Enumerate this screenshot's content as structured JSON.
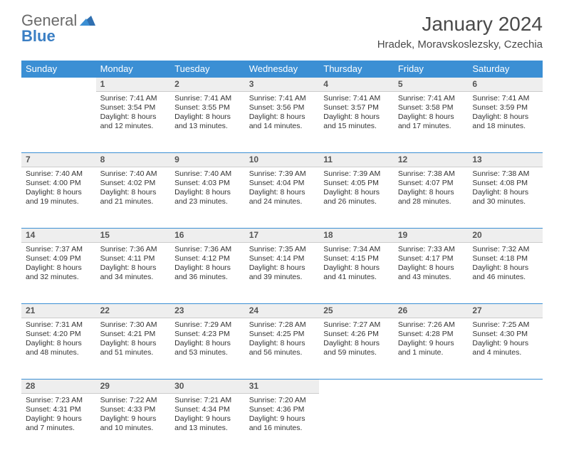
{
  "brand": {
    "word1": "General",
    "word2": "Blue"
  },
  "title": "January 2024",
  "location": "Hradek, Moravskoslezsky, Czechia",
  "colors": {
    "header_bg": "#3b8fd4",
    "header_text": "#ffffff",
    "row_border": "#3b8fd4",
    "daynum_bg": "#eeeeee",
    "text": "#333333",
    "logo_gray": "#6a6a6a",
    "logo_blue": "#3b7fc4"
  },
  "typography": {
    "month_title_pt": 28,
    "location_pt": 15,
    "dayheader_pt": 13,
    "daynum_pt": 12,
    "body_pt": 10.5
  },
  "day_headers": [
    "Sunday",
    "Monday",
    "Tuesday",
    "Wednesday",
    "Thursday",
    "Friday",
    "Saturday"
  ],
  "weeks": [
    {
      "nums": [
        "",
        "1",
        "2",
        "3",
        "4",
        "5",
        "6"
      ],
      "cells": [
        null,
        {
          "sunrise": "Sunrise: 7:41 AM",
          "sunset": "Sunset: 3:54 PM",
          "daylight": "Daylight: 8 hours and 12 minutes."
        },
        {
          "sunrise": "Sunrise: 7:41 AM",
          "sunset": "Sunset: 3:55 PM",
          "daylight": "Daylight: 8 hours and 13 minutes."
        },
        {
          "sunrise": "Sunrise: 7:41 AM",
          "sunset": "Sunset: 3:56 PM",
          "daylight": "Daylight: 8 hours and 14 minutes."
        },
        {
          "sunrise": "Sunrise: 7:41 AM",
          "sunset": "Sunset: 3:57 PM",
          "daylight": "Daylight: 8 hours and 15 minutes."
        },
        {
          "sunrise": "Sunrise: 7:41 AM",
          "sunset": "Sunset: 3:58 PM",
          "daylight": "Daylight: 8 hours and 17 minutes."
        },
        {
          "sunrise": "Sunrise: 7:41 AM",
          "sunset": "Sunset: 3:59 PM",
          "daylight": "Daylight: 8 hours and 18 minutes."
        }
      ]
    },
    {
      "nums": [
        "7",
        "8",
        "9",
        "10",
        "11",
        "12",
        "13"
      ],
      "cells": [
        {
          "sunrise": "Sunrise: 7:40 AM",
          "sunset": "Sunset: 4:00 PM",
          "daylight": "Daylight: 8 hours and 19 minutes."
        },
        {
          "sunrise": "Sunrise: 7:40 AM",
          "sunset": "Sunset: 4:02 PM",
          "daylight": "Daylight: 8 hours and 21 minutes."
        },
        {
          "sunrise": "Sunrise: 7:40 AM",
          "sunset": "Sunset: 4:03 PM",
          "daylight": "Daylight: 8 hours and 23 minutes."
        },
        {
          "sunrise": "Sunrise: 7:39 AM",
          "sunset": "Sunset: 4:04 PM",
          "daylight": "Daylight: 8 hours and 24 minutes."
        },
        {
          "sunrise": "Sunrise: 7:39 AM",
          "sunset": "Sunset: 4:05 PM",
          "daylight": "Daylight: 8 hours and 26 minutes."
        },
        {
          "sunrise": "Sunrise: 7:38 AM",
          "sunset": "Sunset: 4:07 PM",
          "daylight": "Daylight: 8 hours and 28 minutes."
        },
        {
          "sunrise": "Sunrise: 7:38 AM",
          "sunset": "Sunset: 4:08 PM",
          "daylight": "Daylight: 8 hours and 30 minutes."
        }
      ]
    },
    {
      "nums": [
        "14",
        "15",
        "16",
        "17",
        "18",
        "19",
        "20"
      ],
      "cells": [
        {
          "sunrise": "Sunrise: 7:37 AM",
          "sunset": "Sunset: 4:09 PM",
          "daylight": "Daylight: 8 hours and 32 minutes."
        },
        {
          "sunrise": "Sunrise: 7:36 AM",
          "sunset": "Sunset: 4:11 PM",
          "daylight": "Daylight: 8 hours and 34 minutes."
        },
        {
          "sunrise": "Sunrise: 7:36 AM",
          "sunset": "Sunset: 4:12 PM",
          "daylight": "Daylight: 8 hours and 36 minutes."
        },
        {
          "sunrise": "Sunrise: 7:35 AM",
          "sunset": "Sunset: 4:14 PM",
          "daylight": "Daylight: 8 hours and 39 minutes."
        },
        {
          "sunrise": "Sunrise: 7:34 AM",
          "sunset": "Sunset: 4:15 PM",
          "daylight": "Daylight: 8 hours and 41 minutes."
        },
        {
          "sunrise": "Sunrise: 7:33 AM",
          "sunset": "Sunset: 4:17 PM",
          "daylight": "Daylight: 8 hours and 43 minutes."
        },
        {
          "sunrise": "Sunrise: 7:32 AM",
          "sunset": "Sunset: 4:18 PM",
          "daylight": "Daylight: 8 hours and 46 minutes."
        }
      ]
    },
    {
      "nums": [
        "21",
        "22",
        "23",
        "24",
        "25",
        "26",
        "27"
      ],
      "cells": [
        {
          "sunrise": "Sunrise: 7:31 AM",
          "sunset": "Sunset: 4:20 PM",
          "daylight": "Daylight: 8 hours and 48 minutes."
        },
        {
          "sunrise": "Sunrise: 7:30 AM",
          "sunset": "Sunset: 4:21 PM",
          "daylight": "Daylight: 8 hours and 51 minutes."
        },
        {
          "sunrise": "Sunrise: 7:29 AM",
          "sunset": "Sunset: 4:23 PM",
          "daylight": "Daylight: 8 hours and 53 minutes."
        },
        {
          "sunrise": "Sunrise: 7:28 AM",
          "sunset": "Sunset: 4:25 PM",
          "daylight": "Daylight: 8 hours and 56 minutes."
        },
        {
          "sunrise": "Sunrise: 7:27 AM",
          "sunset": "Sunset: 4:26 PM",
          "daylight": "Daylight: 8 hours and 59 minutes."
        },
        {
          "sunrise": "Sunrise: 7:26 AM",
          "sunset": "Sunset: 4:28 PM",
          "daylight": "Daylight: 9 hours and 1 minute."
        },
        {
          "sunrise": "Sunrise: 7:25 AM",
          "sunset": "Sunset: 4:30 PM",
          "daylight": "Daylight: 9 hours and 4 minutes."
        }
      ]
    },
    {
      "nums": [
        "28",
        "29",
        "30",
        "31",
        "",
        "",
        ""
      ],
      "cells": [
        {
          "sunrise": "Sunrise: 7:23 AM",
          "sunset": "Sunset: 4:31 PM",
          "daylight": "Daylight: 9 hours and 7 minutes."
        },
        {
          "sunrise": "Sunrise: 7:22 AM",
          "sunset": "Sunset: 4:33 PM",
          "daylight": "Daylight: 9 hours and 10 minutes."
        },
        {
          "sunrise": "Sunrise: 7:21 AM",
          "sunset": "Sunset: 4:34 PM",
          "daylight": "Daylight: 9 hours and 13 minutes."
        },
        {
          "sunrise": "Sunrise: 7:20 AM",
          "sunset": "Sunset: 4:36 PM",
          "daylight": "Daylight: 9 hours and 16 minutes."
        },
        null,
        null,
        null
      ]
    }
  ]
}
